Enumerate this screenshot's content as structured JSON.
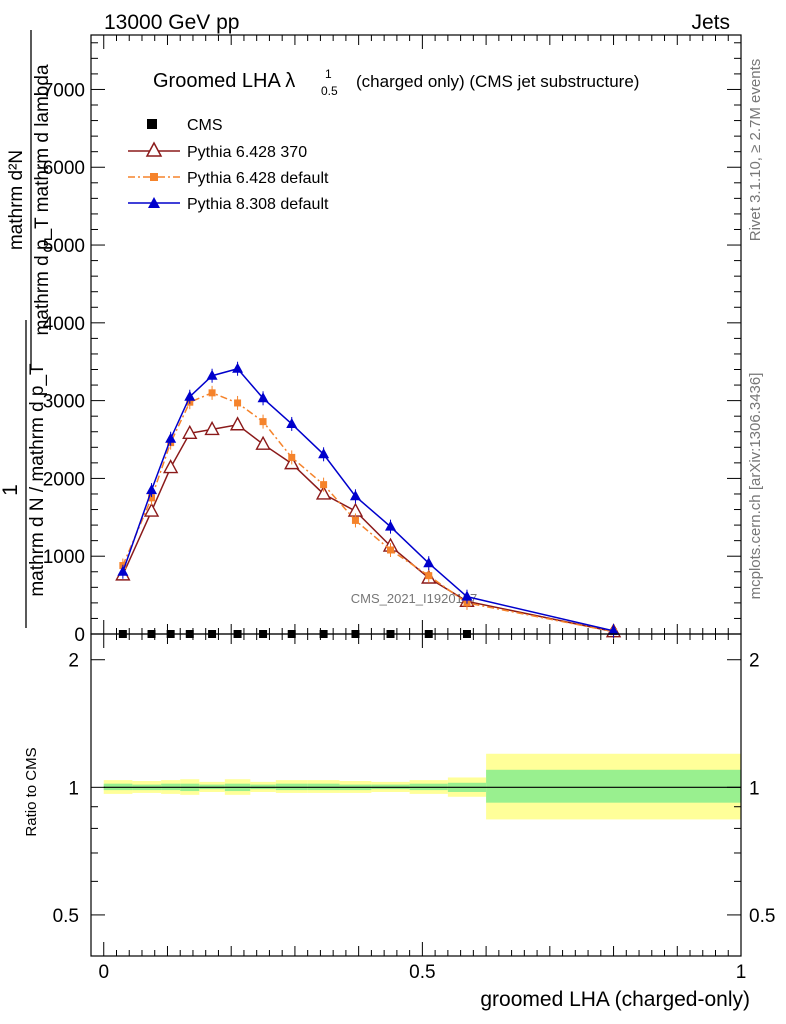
{
  "header": {
    "left": "13000 GeV pp",
    "right": "Jets"
  },
  "side_texts": {
    "rivet": "Rivet 3.1.10, ≥ 2.7M events",
    "mcplots": "mcplots.cern.ch [arXiv:1306.3436]"
  },
  "watermark": "CMS_2021_I1920187",
  "ylabel_main": {
    "line1": "mathrm d²N",
    "line2": "mathrm d p_T mathrm d lambda",
    "factor": "1",
    "line3": "mathrm d N / mathrm d p_T"
  },
  "ratio_label": "Ratio to CMS",
  "xlabel": "groomed LHA (charged-only)",
  "chart_data": {
    "type": "line",
    "title": "Groomed LHA λ",
    "title_sup": "1",
    "title_sub": "0.5",
    "title_suffix": "(charged only) (CMS jet substructure)",
    "x_ticks": [
      {
        "value": 0,
        "label": "0"
      },
      {
        "value": 0.5,
        "label": "0.5"
      },
      {
        "value": 1,
        "label": "1"
      }
    ],
    "xlim": [
      -0.02,
      1.0
    ],
    "ylim": [
      0,
      7700
    ],
    "y_ticks": [
      {
        "value": 0,
        "label": "0"
      },
      {
        "value": 1000,
        "label": "1000"
      },
      {
        "value": 2000,
        "label": "2000"
      },
      {
        "value": 3000,
        "label": "3000"
      },
      {
        "value": 4000,
        "label": "4000"
      },
      {
        "value": 5000,
        "label": "5000"
      },
      {
        "value": 6000,
        "label": "6000"
      },
      {
        "value": 7000,
        "label": "7000"
      }
    ],
    "ratio_ticks": [
      {
        "value": 0.5,
        "label": "0.5"
      },
      {
        "value": 1,
        "label": "1"
      },
      {
        "value": 2,
        "label": "2"
      }
    ],
    "ratio_ylim": [
      0.4,
      2.3
    ],
    "x": [
      0.03,
      0.075,
      0.105,
      0.135,
      0.17,
      0.21,
      0.25,
      0.295,
      0.345,
      0.395,
      0.45,
      0.51,
      0.57,
      0.8
    ],
    "series": [
      {
        "name": "CMS",
        "color": "#000000",
        "marker": "square",
        "line": "none",
        "values": [
          0,
          0,
          0,
          0,
          0,
          0,
          0,
          0,
          0,
          0,
          0,
          0,
          0,
          null
        ]
      },
      {
        "name": "Pythia 6.428 370",
        "color": "#8b1a1a",
        "marker": "open-triangle",
        "line": "solid",
        "values": [
          760,
          1580,
          2140,
          2580,
          2630,
          2690,
          2440,
          2190,
          1800,
          1580,
          1130,
          720,
          420,
          30
        ]
      },
      {
        "name": "Pythia 6.428 default",
        "color": "#f5832b",
        "marker": "square-small",
        "line": "dashdot",
        "values": [
          880,
          1750,
          2460,
          2980,
          3100,
          2970,
          2730,
          2270,
          1920,
          1460,
          1080,
          750,
          400,
          30
        ]
      },
      {
        "name": "Pythia 8.308 default",
        "color": "#0000cc",
        "marker": "filled-triangle",
        "line": "solid",
        "values": [
          800,
          1850,
          2510,
          3050,
          3320,
          3410,
          3030,
          2700,
          2310,
          1770,
          1380,
          910,
          480,
          40
        ]
      }
    ],
    "ratio_bands": [
      {
        "x0": 0.0,
        "x1": 0.045,
        "yellow": [
          0.965,
          1.04
        ],
        "green": [
          0.985,
          1.02
        ]
      },
      {
        "x0": 0.045,
        "x1": 0.09,
        "yellow": [
          0.97,
          1.035
        ],
        "green": [
          0.985,
          1.015
        ]
      },
      {
        "x0": 0.09,
        "x1": 0.12,
        "yellow": [
          0.965,
          1.04
        ],
        "green": [
          0.985,
          1.02
        ]
      },
      {
        "x0": 0.12,
        "x1": 0.15,
        "yellow": [
          0.96,
          1.045
        ],
        "green": [
          0.98,
          1.02
        ]
      },
      {
        "x0": 0.15,
        "x1": 0.19,
        "yellow": [
          0.975,
          1.03
        ],
        "green": [
          0.99,
          1.015
        ]
      },
      {
        "x0": 0.19,
        "x1": 0.23,
        "yellow": [
          0.96,
          1.045
        ],
        "green": [
          0.98,
          1.02
        ]
      },
      {
        "x0": 0.23,
        "x1": 0.27,
        "yellow": [
          0.975,
          1.03
        ],
        "green": [
          0.99,
          1.015
        ]
      },
      {
        "x0": 0.27,
        "x1": 0.32,
        "yellow": [
          0.97,
          1.04
        ],
        "green": [
          0.985,
          1.02
        ]
      },
      {
        "x0": 0.32,
        "x1": 0.37,
        "yellow": [
          0.97,
          1.04
        ],
        "green": [
          0.985,
          1.02
        ]
      },
      {
        "x0": 0.37,
        "x1": 0.42,
        "yellow": [
          0.97,
          1.035
        ],
        "green": [
          0.985,
          1.015
        ]
      },
      {
        "x0": 0.42,
        "x1": 0.48,
        "yellow": [
          0.975,
          1.03
        ],
        "green": [
          0.99,
          1.015
        ]
      },
      {
        "x0": 0.48,
        "x1": 0.54,
        "yellow": [
          0.965,
          1.04
        ],
        "green": [
          0.985,
          1.02
        ]
      },
      {
        "x0": 0.54,
        "x1": 0.6,
        "yellow": [
          0.95,
          1.055
        ],
        "green": [
          0.975,
          1.025
        ]
      },
      {
        "x0": 0.6,
        "x1": 1.0,
        "yellow": [
          0.84,
          1.2
        ],
        "green": [
          0.92,
          1.1
        ]
      }
    ]
  }
}
